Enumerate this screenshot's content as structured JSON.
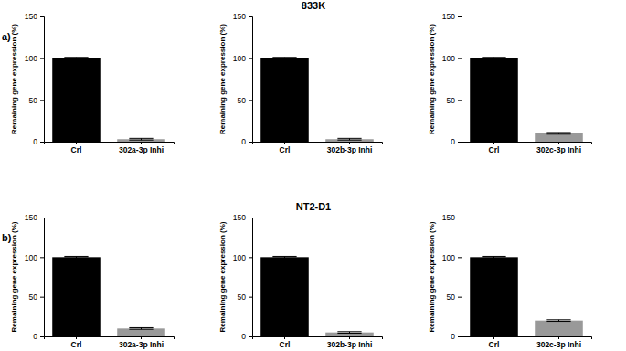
{
  "chart_data": [
    {
      "type": "bar",
      "annotations": [
        "a)"
      ],
      "categories": [
        "Crl",
        "302a-3p Inhi"
      ],
      "values": [
        100,
        3
      ],
      "errors": [
        1,
        1
      ],
      "colors": [
        "#000000",
        "#999999"
      ],
      "ylim": [
        0,
        150
      ],
      "yticks": [
        0,
        50,
        100,
        150
      ],
      "y_label": "Remaining gene expression (%)"
    },
    {
      "type": "bar",
      "title": "833K",
      "categories": [
        "Crl",
        "302b-3p Inhi"
      ],
      "values": [
        100,
        3
      ],
      "errors": [
        1,
        1
      ],
      "colors": [
        "#000000",
        "#999999"
      ],
      "ylim": [
        0,
        150
      ],
      "yticks": [
        0,
        50,
        100,
        150
      ],
      "y_label": "Remaining gene expression (%)"
    },
    {
      "type": "bar",
      "categories": [
        "Crl",
        "302c-3p Inhi"
      ],
      "values": [
        100,
        10
      ],
      "errors": [
        1,
        1
      ],
      "colors": [
        "#000000",
        "#999999"
      ],
      "ylim": [
        0,
        150
      ],
      "yticks": [
        0,
        50,
        100,
        150
      ],
      "y_label": "Remaining gene expression (%)"
    },
    {
      "type": "bar",
      "annotations": [
        "b)"
      ],
      "categories": [
        "Crl",
        "302a-3p Inhi"
      ],
      "values": [
        100,
        10
      ],
      "errors": [
        1,
        1
      ],
      "colors": [
        "#000000",
        "#999999"
      ],
      "ylim": [
        0,
        150
      ],
      "yticks": [
        0,
        50,
        100,
        150
      ],
      "y_label": "Remaining gene expression (%)"
    },
    {
      "type": "bar",
      "title": "NT2-D1",
      "categories": [
        "Crl",
        "302b-3p Inhi"
      ],
      "values": [
        100,
        5
      ],
      "errors": [
        1,
        1
      ],
      "colors": [
        "#000000",
        "#999999"
      ],
      "ylim": [
        0,
        150
      ],
      "yticks": [
        0,
        50,
        100,
        150
      ],
      "y_label": "Remaining gene expression (%)"
    },
    {
      "type": "bar",
      "categories": [
        "Crl",
        "302c-3p Inhi"
      ],
      "values": [
        100,
        20
      ],
      "errors": [
        1,
        1
      ],
      "colors": [
        "#000000",
        "#999999"
      ],
      "ylim": [
        0,
        150
      ],
      "yticks": [
        0,
        50,
        100,
        150
      ],
      "y_label": "Remaining gene expression (%)"
    }
  ]
}
